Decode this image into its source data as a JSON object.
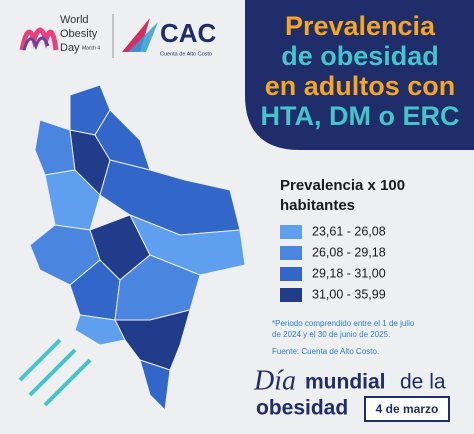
{
  "header": {
    "wod_line1": "World",
    "wod_line2": "Obesity",
    "wod_line3": "Day",
    "wod_date": "March 4",
    "cac_name": "CAC",
    "cac_full": "Cuenta de Alto Costo"
  },
  "title": {
    "lines": [
      "Prevalencia",
      "de obesidad",
      "en adultos con",
      "HTA, DM o ERC"
    ],
    "colors": [
      "#f5a623",
      "#45c4cc",
      "#f5a623",
      "#45c4cc"
    ]
  },
  "legend": {
    "title_lines": [
      "Prevalencia x 100",
      "habitantes"
    ],
    "items": [
      {
        "label": "23,61 - 26,08",
        "color": "#5f9ff0"
      },
      {
        "label": "26,08 - 29,18",
        "color": "#4a86e0"
      },
      {
        "label": "29,18 - 31,00",
        "color": "#3366c9"
      },
      {
        "label": "31,00 - 35,99",
        "color": "#223c8c"
      }
    ]
  },
  "note": {
    "lines": [
      "*Periodo comprendido entre el 1 de julio",
      "de 2024 y el 30 de junio de 2025."
    ]
  },
  "source": "Fuente: Cuenta de Alto Costo.",
  "footer": {
    "dia": "Día",
    "mundial": "mundial",
    "de_la": "de la",
    "obesidad": "obesidad",
    "date": "4 de marzo"
  }
}
